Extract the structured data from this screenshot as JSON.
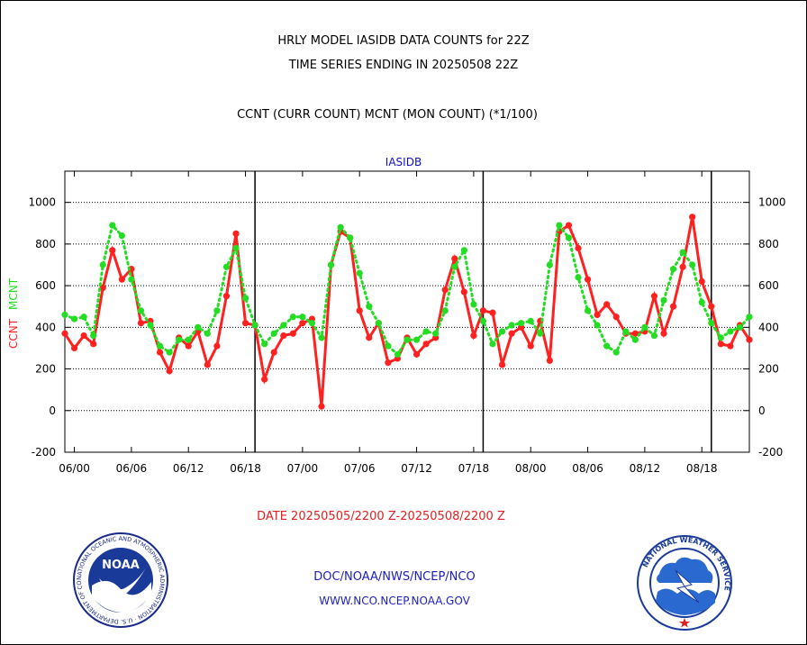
{
  "header": {
    "line1": "HRLY MODEL IASIDB DATA COUNTS for 22Z",
    "line2": "TIME SERIES ENDING IN 20250508 22Z",
    "line3": "CCNT (CURR COUNT) MCNT (MON COUNT) (*1/100)"
  },
  "footer": {
    "date_range": "DATE 20250505/2200 Z-20250508/2200 Z",
    "org": "DOC/NOAA/NWS/NCEP/NCO",
    "url": "WWW.NCO.NCEP.NOAA.GOV"
  },
  "logos": {
    "left_text": "NATIONAL OCEANIC AND ATMOSPHERIC ADMINISTRATION · U.S. DEPARTMENT OF COMMERCE",
    "left_center": "NOAA",
    "right_text": "NATIONAL WEATHER SERVICE"
  },
  "colors": {
    "ccnt": "#ff2020",
    "mcnt": "#22dd22",
    "panel_title": "#1010c0",
    "footer_red": "#e02020",
    "footer_blue": "#2020c0"
  },
  "chart_data": {
    "type": "line",
    "title": "IASIDB",
    "ylabel_series": [
      "CCNT",
      "MCNT"
    ],
    "ylim": [
      -200,
      1150
    ],
    "yticks": [
      -200,
      0,
      200,
      400,
      600,
      800,
      1000
    ],
    "xlim": [
      0,
      72
    ],
    "x_tick_positions": [
      1,
      7,
      13,
      19,
      25,
      31,
      37,
      43,
      49,
      55,
      61,
      67
    ],
    "x_tick_labels": [
      "06/00",
      "06/06",
      "06/12",
      "06/18",
      "07/00",
      "07/06",
      "07/12",
      "07/18",
      "08/00",
      "08/06",
      "08/12",
      "08/18"
    ],
    "day_boundaries": [
      20,
      44,
      68
    ],
    "grid": "horizontal dotted",
    "x": [
      0,
      1,
      2,
      3,
      4,
      5,
      6,
      7,
      8,
      9,
      10,
      11,
      12,
      13,
      14,
      15,
      16,
      17,
      18,
      19,
      20,
      21,
      22,
      23,
      24,
      25,
      26,
      27,
      28,
      29,
      30,
      31,
      32,
      33,
      34,
      35,
      36,
      37,
      38,
      39,
      40,
      41,
      42,
      43,
      44,
      45,
      46,
      47,
      48,
      49,
      50,
      51,
      52,
      53,
      54,
      55,
      56,
      57,
      58,
      59,
      60,
      61,
      62,
      63,
      64,
      65,
      66,
      67,
      68,
      69,
      70,
      71,
      72
    ],
    "series": [
      {
        "name": "CCNT",
        "values": [
          370,
          300,
          360,
          320,
          590,
          770,
          630,
          680,
          420,
          430,
          280,
          190,
          350,
          310,
          380,
          220,
          310,
          550,
          850,
          420,
          410,
          150,
          280,
          360,
          370,
          420,
          440,
          20,
          700,
          860,
          830,
          480,
          350,
          420,
          230,
          250,
          350,
          270,
          320,
          350,
          580,
          730,
          570,
          360,
          480,
          470,
          220,
          370,
          400,
          310,
          430,
          240,
          860,
          890,
          780,
          630,
          460,
          510,
          450,
          370,
          370,
          380,
          550,
          370,
          500,
          690,
          930,
          620,
          500,
          320,
          310,
          410,
          340
        ]
      },
      {
        "name": "MCNT",
        "values": [
          460,
          440,
          450,
          360,
          700,
          890,
          840,
          630,
          480,
          410,
          310,
          280,
          340,
          340,
          400,
          370,
          480,
          690,
          780,
          540,
          410,
          320,
          370,
          410,
          450,
          450,
          420,
          350,
          700,
          880,
          830,
          660,
          500,
          420,
          310,
          270,
          340,
          340,
          380,
          370,
          480,
          690,
          770,
          510,
          430,
          320,
          380,
          410,
          420,
          430,
          370,
          700,
          890,
          830,
          640,
          480,
          410,
          310,
          280,
          380,
          340,
          400,
          360,
          530,
          680,
          760,
          700,
          520,
          420,
          350,
          380,
          400,
          450
        ]
      }
    ]
  }
}
